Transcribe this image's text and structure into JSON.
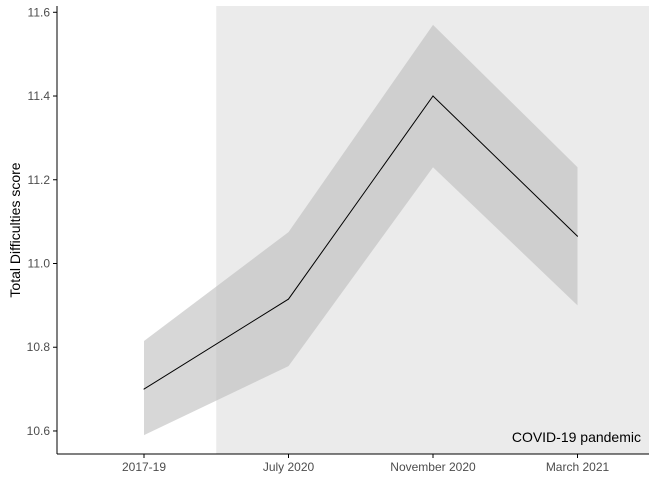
{
  "chart_data": {
    "type": "line",
    "xlabel": "",
    "ylabel": "Total Difficulties score",
    "categories": [
      "2017-19",
      "July 2020",
      "November 2020",
      "March 2021"
    ],
    "series": [
      {
        "values": [
          10.7,
          10.915,
          11.4,
          11.065
        ],
        "lower": [
          10.59,
          10.755,
          11.23,
          10.9
        ],
        "upper": [
          10.815,
          11.075,
          11.57,
          11.23
        ],
        "line_color": "#000000",
        "band_color": "#bdbdbd"
      }
    ],
    "ylim": [
      10.545,
      11.615
    ],
    "yticks": [
      "10.6",
      "10.8",
      "11.0",
      "11.2",
      "11.4",
      "11.6"
    ],
    "shaded_region": {
      "from_category": "July 2020",
      "to": "end",
      "label": "COVID-19 pandemic",
      "color": "#ebebeb"
    },
    "grid": false,
    "legend": "none"
  }
}
